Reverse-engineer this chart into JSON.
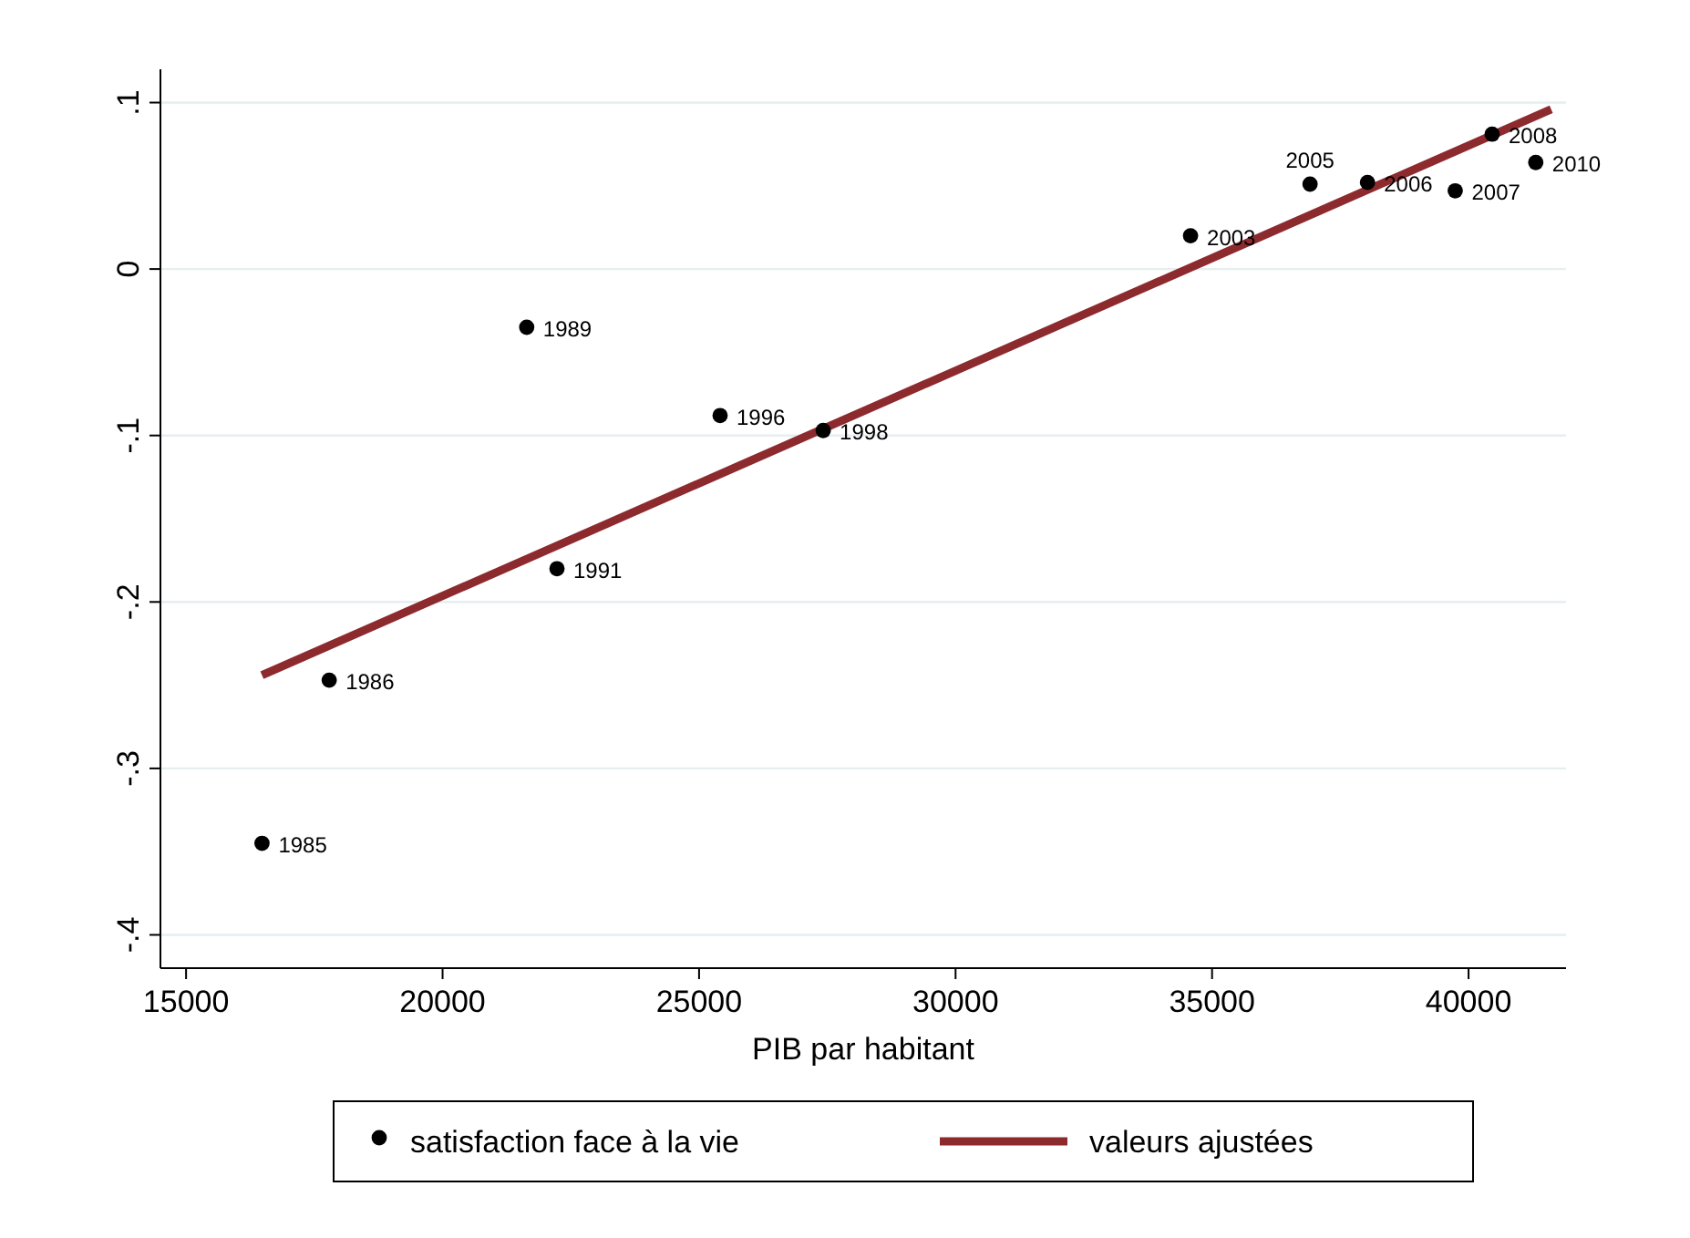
{
  "chart_data": {
    "type": "scatter",
    "xlabel": "PIB par habitant",
    "xlim": [
      14500,
      41900
    ],
    "xticks": [
      15000,
      20000,
      25000,
      30000,
      35000,
      40000
    ],
    "ylim": [
      -0.42,
      0.12
    ],
    "yticks": [
      {
        "value": 0.1,
        "label": ".1"
      },
      {
        "value": 0,
        "label": "0"
      },
      {
        "value": -0.1,
        "label": "-.1"
      },
      {
        "value": -0.2,
        "label": "-.2"
      },
      {
        "value": -0.3,
        "label": "-.3"
      },
      {
        "value": -0.4,
        "label": "-.4"
      }
    ],
    "grid": "y",
    "legend": "bottom",
    "series": [
      {
        "name": "satisfaction face à la vie",
        "marker": "circle",
        "color": "#000000",
        "x": [
          16480,
          17790,
          21640,
          22230,
          25410,
          27420,
          34580,
          36910,
          38030,
          39740,
          40460,
          41310
        ],
        "values": [
          -0.345,
          -0.247,
          -0.035,
          -0.18,
          -0.088,
          -0.097,
          0.02,
          0.051,
          0.052,
          0.047,
          0.081,
          0.064
        ]
      },
      {
        "name": "valeurs ajustées",
        "type": "line",
        "marker": "none",
        "color": "#8c2a2e",
        "x": [
          16480,
          41610
        ],
        "values": [
          -0.244,
          0.096
        ]
      }
    ],
    "annotations": [
      {
        "text": "1985",
        "x": 16480,
        "y": -0.345
      },
      {
        "text": "1986",
        "x": 17790,
        "y": -0.247
      },
      {
        "text": "1989",
        "x": 21640,
        "y": -0.035
      },
      {
        "text": "1991",
        "x": 22230,
        "y": -0.18
      },
      {
        "text": "1996",
        "x": 25410,
        "y": -0.088
      },
      {
        "text": "1998",
        "x": 27420,
        "y": -0.097
      },
      {
        "text": "2003",
        "x": 34580,
        "y": 0.02
      },
      {
        "text": "2005",
        "x": 36910,
        "y": 0.051
      },
      {
        "text": "2006",
        "x": 38030,
        "y": 0.052
      },
      {
        "text": "2007",
        "x": 39740,
        "y": 0.047
      },
      {
        "text": "2008",
        "x": 40460,
        "y": 0.081
      },
      {
        "text": "2010",
        "x": 41310,
        "y": 0.064
      }
    ]
  }
}
